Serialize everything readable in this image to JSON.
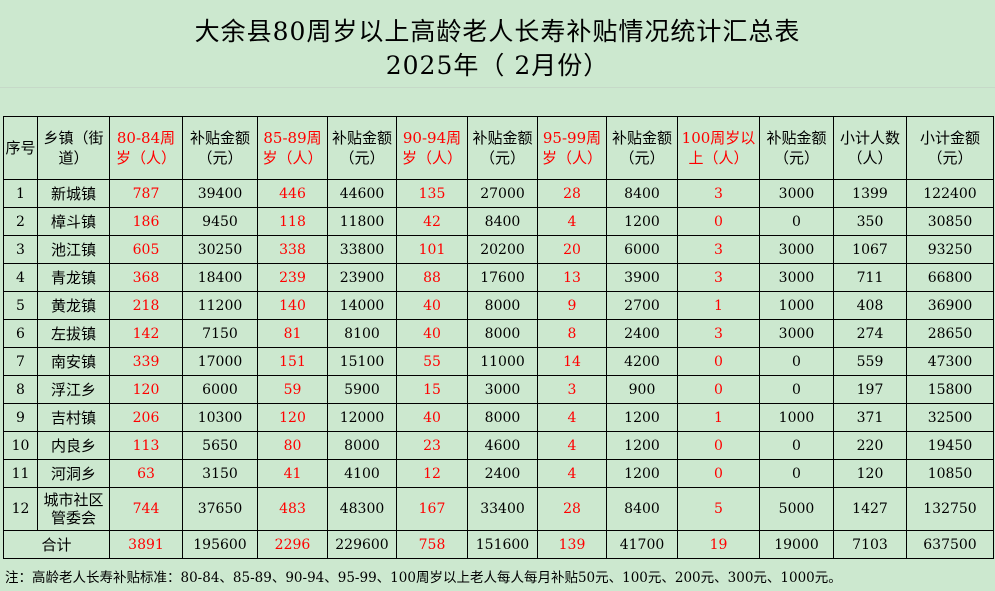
{
  "title": "大余县80周岁以上高龄老人长寿补贴情况统计汇总表",
  "subtitle": "2025年（ 2月份）",
  "headers": [
    "序号",
    "乡镇（街道）",
    "80-84周岁（人）",
    "补贴金额（元）",
    "85-89周岁（人）",
    "补贴金额（元）",
    "90-94周岁（人）",
    "补贴金额（元）",
    "95-99周岁（人）",
    "补贴金额（元）",
    "100周岁以上（人）",
    "补贴金额（元）",
    "小计人数（人）",
    "小计金额（元）"
  ],
  "rows": [
    [
      "1",
      "新城镇",
      "787",
      "39400",
      "446",
      "44600",
      "135",
      "27000",
      "28",
      "8400",
      "3",
      "3000",
      "1399",
      "122400"
    ],
    [
      "2",
      "樟斗镇",
      "186",
      "9450",
      "118",
      "11800",
      "42",
      "8400",
      "4",
      "1200",
      "0",
      "0",
      "350",
      "30850"
    ],
    [
      "3",
      "池江镇",
      "605",
      "30250",
      "338",
      "33800",
      "101",
      "20200",
      "20",
      "6000",
      "3",
      "3000",
      "1067",
      "93250"
    ],
    [
      "4",
      "青龙镇",
      "368",
      "18400",
      "239",
      "23900",
      "88",
      "17600",
      "13",
      "3900",
      "3",
      "3000",
      "711",
      "66800"
    ],
    [
      "5",
      "黄龙镇",
      "218",
      "11200",
      "140",
      "14000",
      "40",
      "8000",
      "9",
      "2700",
      "1",
      "1000",
      "408",
      "36900"
    ],
    [
      "6",
      "左拔镇",
      "142",
      "7150",
      "81",
      "8100",
      "40",
      "8000",
      "8",
      "2400",
      "3",
      "3000",
      "274",
      "28650"
    ],
    [
      "7",
      "南安镇",
      "339",
      "17000",
      "151",
      "15100",
      "55",
      "11000",
      "14",
      "4200",
      "0",
      "0",
      "559",
      "47300"
    ],
    [
      "8",
      "浮江乡",
      "120",
      "6000",
      "59",
      "5900",
      "15",
      "3000",
      "3",
      "900",
      "0",
      "0",
      "197",
      "15800"
    ],
    [
      "9",
      "吉村镇",
      "206",
      "10300",
      "120",
      "12000",
      "40",
      "8000",
      "4",
      "1200",
      "1",
      "1000",
      "371",
      "32500"
    ],
    [
      "10",
      "内良乡",
      "113",
      "5650",
      "80",
      "8000",
      "23",
      "4600",
      "4",
      "1200",
      "0",
      "0",
      "220",
      "19450"
    ],
    [
      "11",
      "河洞乡",
      "63",
      "3150",
      "41",
      "4100",
      "12",
      "2400",
      "4",
      "1200",
      "0",
      "0",
      "120",
      "10850"
    ],
    [
      "12",
      "城市社区管委会",
      "744",
      "37650",
      "483",
      "48300",
      "167",
      "33400",
      "28",
      "8400",
      "5",
      "5000",
      "1427",
      "132750"
    ]
  ],
  "total": [
    "合计",
    "3891",
    "195600",
    "2296",
    "229600",
    "758",
    "151600",
    "139",
    "41700",
    "19",
    "19000",
    "7103",
    "637500"
  ],
  "note": "注：高龄老人长寿补贴标准：80-84、85-89、90-94、95-99、100周岁以上老人每人每月补贴50元、100元、200元、300元、1000元。",
  "colors": {
    "background": "#cce8cf",
    "highlight": "#ff0000"
  }
}
